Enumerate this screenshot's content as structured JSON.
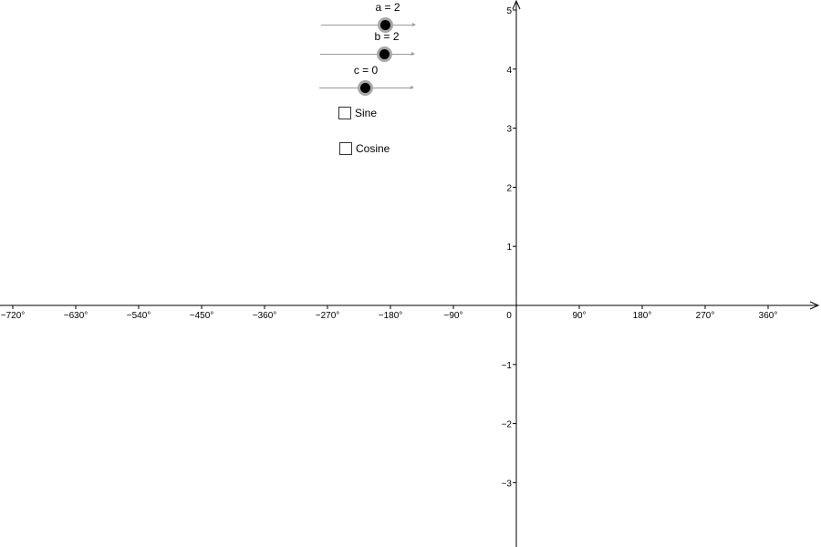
{
  "sliders": [
    {
      "id": "a",
      "label": "a = 2",
      "value": 2
    },
    {
      "id": "b",
      "label": "b = 2",
      "value": 2
    },
    {
      "id": "c",
      "label": "c = 0",
      "value": 0
    }
  ],
  "checkboxes": [
    {
      "id": "sine",
      "label": "Sine",
      "checked": false
    },
    {
      "id": "cosine",
      "label": "Cosine",
      "checked": false
    }
  ],
  "axes": {
    "x_ticks": [
      "−720°",
      "−630°",
      "−540°",
      "−450°",
      "−360°",
      "−270°",
      "−180°",
      "−90°",
      "0",
      "90°",
      "180°",
      "270°",
      "360°"
    ],
    "x_tick_values": [
      -720,
      -630,
      -540,
      -450,
      -360,
      -270,
      -180,
      -90,
      0,
      90,
      180,
      270,
      360
    ],
    "y_ticks": [
      "5",
      "4",
      "3",
      "2",
      "1",
      "−1",
      "−2",
      "−3"
    ],
    "y_tick_values": [
      5,
      4,
      3,
      2,
      1,
      -1,
      -2,
      -3
    ]
  }
}
